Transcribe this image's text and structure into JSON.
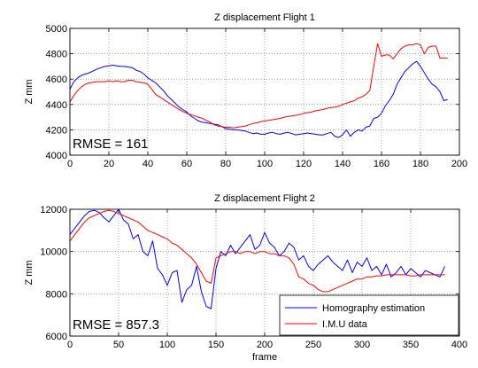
{
  "chart_data": [
    {
      "type": "line",
      "title": "Z displacement Flight 1",
      "xlabel": "",
      "ylabel": "Z mm",
      "xlim": [
        0,
        200
      ],
      "ylim": [
        4000,
        5000
      ],
      "xticks": [
        0,
        20,
        40,
        60,
        80,
        100,
        120,
        140,
        160,
        180,
        200
      ],
      "yticks": [
        4000,
        4200,
        4400,
        4600,
        4800,
        5000
      ],
      "grid": true,
      "annotation": "RMSE = 161",
      "series": [
        {
          "color": "#0000ff",
          "x": [
            0,
            2,
            4,
            6,
            8,
            10,
            12,
            14,
            16,
            18,
            20,
            22,
            24,
            26,
            28,
            30,
            32,
            34,
            36,
            38,
            40,
            42,
            44,
            46,
            48,
            50,
            52,
            54,
            56,
            58,
            60,
            62,
            64,
            66,
            68,
            70,
            72,
            74,
            76,
            78,
            80,
            82,
            84,
            86,
            88,
            90,
            92,
            94,
            96,
            98,
            100,
            102,
            104,
            106,
            108,
            110,
            112,
            114,
            116,
            118,
            120,
            122,
            124,
            126,
            128,
            130,
            132,
            134,
            136,
            138,
            140,
            142,
            144,
            146,
            148,
            150,
            152,
            154,
            156,
            158,
            160,
            162,
            164,
            166,
            168,
            170,
            172,
            174,
            176,
            178,
            180,
            182,
            184,
            186,
            188,
            190,
            192,
            194
          ],
          "y": [
            4520,
            4580,
            4610,
            4630,
            4640,
            4650,
            4665,
            4680,
            4690,
            4700,
            4705,
            4710,
            4705,
            4700,
            4700,
            4695,
            4690,
            4670,
            4660,
            4640,
            4610,
            4590,
            4570,
            4540,
            4510,
            4470,
            4440,
            4410,
            4380,
            4360,
            4340,
            4310,
            4290,
            4270,
            4260,
            4255,
            4250,
            4245,
            4240,
            4225,
            4210,
            4205,
            4200,
            4200,
            4195,
            4190,
            4180,
            4170,
            4175,
            4165,
            4165,
            4175,
            4180,
            4170,
            4165,
            4175,
            4180,
            4170,
            4160,
            4165,
            4170,
            4175,
            4170,
            4165,
            4160,
            4160,
            4170,
            4180,
            4150,
            4140,
            4160,
            4200,
            4150,
            4180,
            4200,
            4190,
            4220,
            4230,
            4290,
            4300,
            4330,
            4390,
            4430,
            4480,
            4560,
            4610,
            4660,
            4690,
            4720,
            4740,
            4700,
            4650,
            4600,
            4560,
            4540,
            4500,
            4430,
            4440
          ]
        },
        {
          "color": "#ff0000",
          "x": [
            0,
            2,
            4,
            6,
            8,
            10,
            12,
            14,
            16,
            18,
            20,
            22,
            24,
            26,
            28,
            30,
            32,
            34,
            36,
            38,
            40,
            42,
            44,
            46,
            48,
            50,
            52,
            54,
            56,
            58,
            60,
            62,
            64,
            66,
            68,
            70,
            72,
            74,
            76,
            78,
            80,
            82,
            84,
            86,
            88,
            90,
            92,
            94,
            96,
            98,
            100,
            102,
            104,
            106,
            108,
            110,
            112,
            114,
            116,
            118,
            120,
            122,
            124,
            126,
            128,
            130,
            132,
            134,
            136,
            138,
            140,
            142,
            144,
            146,
            148,
            150,
            152,
            154,
            156,
            158,
            160,
            162,
            164,
            166,
            168,
            170,
            172,
            174,
            176,
            178,
            180,
            182,
            184,
            186,
            188,
            190,
            192,
            194
          ],
          "y": [
            4420,
            4470,
            4510,
            4540,
            4560,
            4570,
            4575,
            4580,
            4580,
            4580,
            4585,
            4580,
            4585,
            4580,
            4580,
            4590,
            4590,
            4580,
            4575,
            4570,
            4560,
            4520,
            4480,
            4460,
            4440,
            4420,
            4400,
            4380,
            4360,
            4345,
            4330,
            4320,
            4310,
            4300,
            4290,
            4275,
            4260,
            4240,
            4230,
            4225,
            4220,
            4220,
            4215,
            4220,
            4225,
            4230,
            4240,
            4250,
            4255,
            4265,
            4270,
            4275,
            4280,
            4285,
            4290,
            4300,
            4305,
            4310,
            4315,
            4320,
            4330,
            4335,
            4340,
            4350,
            4355,
            4360,
            4370,
            4375,
            4380,
            4385,
            4400,
            4410,
            4420,
            4430,
            4450,
            4460,
            4480,
            4510,
            4700,
            4880,
            4780,
            4790,
            4790,
            4760,
            4800,
            4840,
            4860,
            4870,
            4870,
            4880,
            4870,
            4800,
            4850,
            4860,
            4860,
            4765,
            4765,
            4765
          ]
        }
      ]
    },
    {
      "type": "line",
      "title": "Z displacement Flight 2",
      "xlabel": "frame",
      "ylabel": "Z mm",
      "xlim": [
        0,
        400
      ],
      "ylim": [
        6000,
        12000
      ],
      "xticks": [
        0,
        50,
        100,
        150,
        200,
        250,
        300,
        350,
        400
      ],
      "yticks": [
        6000,
        8000,
        10000,
        12000
      ],
      "grid": true,
      "annotation": "RMSE = 857.3",
      "legend": {
        "position": "bottom-right"
      },
      "series": [
        {
          "name": "Homography estimation",
          "color": "#0000ff",
          "x": [
            0,
            5,
            10,
            15,
            20,
            25,
            30,
            35,
            40,
            45,
            50,
            55,
            60,
            65,
            70,
            75,
            80,
            85,
            90,
            95,
            100,
            105,
            110,
            115,
            120,
            125,
            130,
            135,
            140,
            145,
            150,
            155,
            160,
            165,
            170,
            175,
            180,
            185,
            190,
            195,
            200,
            205,
            210,
            215,
            220,
            225,
            230,
            235,
            240,
            245,
            250,
            255,
            260,
            265,
            270,
            275,
            280,
            285,
            290,
            295,
            300,
            305,
            310,
            315,
            320,
            325,
            330,
            335,
            340,
            345,
            350,
            355,
            360,
            365,
            370,
            375,
            380,
            385
          ],
          "y": [
            10800,
            11100,
            11400,
            11700,
            11900,
            11950,
            11850,
            11600,
            11400,
            11700,
            12000,
            11500,
            11300,
            10600,
            10800,
            10000,
            9800,
            10500,
            9200,
            8900,
            8400,
            9000,
            9100,
            7600,
            8200,
            8400,
            9300,
            8100,
            7400,
            7300,
            9200,
            10000,
            9800,
            10300,
            9900,
            10200,
            10500,
            10800,
            10100,
            10300,
            10900,
            10400,
            10200,
            9800,
            10000,
            10400,
            10200,
            9600,
            9800,
            9300,
            9100,
            9400,
            9600,
            9800,
            9500,
            9300,
            9100,
            9600,
            9000,
            9500,
            9300,
            9700,
            9100,
            9300,
            8900,
            9400,
            8800,
            9000,
            9300,
            8900,
            9200,
            9000,
            8800,
            9100,
            9000,
            8900,
            8800,
            9300
          ]
        },
        {
          "name": "I.M.U data",
          "color": "#ff0000",
          "x": [
            0,
            5,
            10,
            15,
            20,
            25,
            30,
            35,
            40,
            45,
            50,
            55,
            60,
            65,
            70,
            75,
            80,
            85,
            90,
            95,
            100,
            105,
            110,
            115,
            120,
            125,
            130,
            135,
            140,
            145,
            150,
            155,
            160,
            165,
            170,
            175,
            180,
            185,
            190,
            195,
            200,
            205,
            210,
            215,
            220,
            225,
            230,
            235,
            240,
            245,
            250,
            255,
            260,
            265,
            270,
            275,
            280,
            285,
            290,
            295,
            300,
            305,
            310,
            315,
            320,
            325,
            330,
            335,
            340,
            345,
            350,
            355,
            360,
            365,
            370,
            375,
            380,
            385
          ],
          "y": [
            10500,
            10800,
            11100,
            11400,
            11600,
            11700,
            11800,
            11900,
            11950,
            11900,
            11800,
            11700,
            11600,
            11500,
            11400,
            11200,
            11000,
            10900,
            10800,
            10700,
            10600,
            10400,
            10300,
            10100,
            9900,
            9700,
            9400,
            9000,
            8600,
            8500,
            9700,
            9800,
            9900,
            10000,
            10000,
            9900,
            10000,
            10000,
            9900,
            10000,
            10000,
            9900,
            9900,
            9800,
            9800,
            9700,
            9400,
            8800,
            8700,
            8500,
            8400,
            8200,
            8100,
            8100,
            8200,
            8300,
            8400,
            8500,
            8600,
            8700,
            8700,
            8800,
            8800,
            8850,
            8850,
            8900,
            8900,
            8900,
            8900,
            8900,
            8850,
            8850,
            8900,
            8900,
            8900,
            8900,
            8900,
            8900
          ]
        }
      ]
    }
  ]
}
